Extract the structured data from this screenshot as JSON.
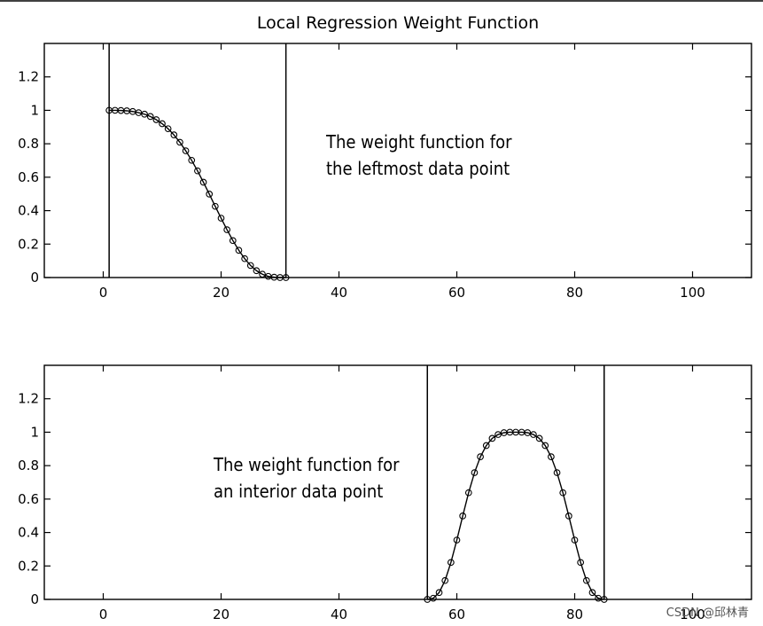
{
  "figure": {
    "title": "Local Regression Weight Function",
    "watermark": "CSDN @邱林青"
  },
  "chart_data": [
    {
      "type": "line",
      "title": "Local Regression Weight Function",
      "xlim": [
        -10,
        110
      ],
      "ylim": [
        0,
        1.4
      ],
      "xticks": [
        "0",
        "20",
        "40",
        "60",
        "80",
        "100"
      ],
      "xtick_values": [
        0,
        20,
        40,
        60,
        80,
        100
      ],
      "yticks": [
        "0",
        "0.2",
        "0.4",
        "0.6",
        "0.8",
        "1",
        "1.2"
      ],
      "ytick_values": [
        0,
        0.2,
        0.4,
        0.6,
        0.8,
        1,
        1.2
      ],
      "vertical_lines": [
        1,
        31
      ],
      "annotation": [
        "The weight function for",
        "the leftmost data point"
      ],
      "series": [
        {
          "marker": "circle",
          "x": [
            1,
            2,
            3,
            4,
            5,
            6,
            7,
            8,
            9,
            10,
            11,
            12,
            13,
            14,
            15,
            16,
            17,
            18,
            19,
            20,
            21,
            22,
            23,
            24,
            25,
            26,
            27,
            28,
            29,
            30,
            31
          ],
          "y": [
            1.0,
            1.0,
            0.999,
            0.997,
            0.993,
            0.986,
            0.977,
            0.963,
            0.944,
            0.92,
            0.89,
            0.853,
            0.809,
            0.758,
            0.701,
            0.638,
            0.57,
            0.499,
            0.426,
            0.355,
            0.286,
            0.221,
            0.163,
            0.113,
            0.072,
            0.041,
            0.02,
            0.007,
            0.002,
            0.0,
            0.0
          ]
        }
      ]
    },
    {
      "type": "line",
      "xlim": [
        -10,
        110
      ],
      "ylim": [
        0,
        1.4
      ],
      "xticks": [
        "0",
        "20",
        "40",
        "60",
        "80",
        "100"
      ],
      "xtick_values": [
        0,
        20,
        40,
        60,
        80,
        100
      ],
      "yticks": [
        "0",
        "0.2",
        "0.4",
        "0.6",
        "0.8",
        "1",
        "1.2"
      ],
      "ytick_values": [
        0,
        0.2,
        0.4,
        0.6,
        0.8,
        1,
        1.2
      ],
      "vertical_lines": [
        55,
        85
      ],
      "annotation": [
        "The weight function for",
        "an interior data point"
      ],
      "series": [
        {
          "marker": "circle",
          "x": [
            55,
            56,
            57,
            58,
            59,
            60,
            61,
            62,
            63,
            64,
            65,
            66,
            67,
            68,
            69,
            70,
            71,
            72,
            73,
            74,
            75,
            76,
            77,
            78,
            79,
            80,
            81,
            82,
            83,
            84,
            85
          ],
          "y": [
            0.0,
            0.007,
            0.041,
            0.113,
            0.221,
            0.355,
            0.499,
            0.638,
            0.758,
            0.853,
            0.92,
            0.963,
            0.986,
            0.997,
            1.0,
            1.0,
            1.0,
            0.997,
            0.986,
            0.963,
            0.92,
            0.853,
            0.758,
            0.638,
            0.499,
            0.355,
            0.221,
            0.113,
            0.041,
            0.007,
            0.0
          ]
        }
      ]
    }
  ]
}
